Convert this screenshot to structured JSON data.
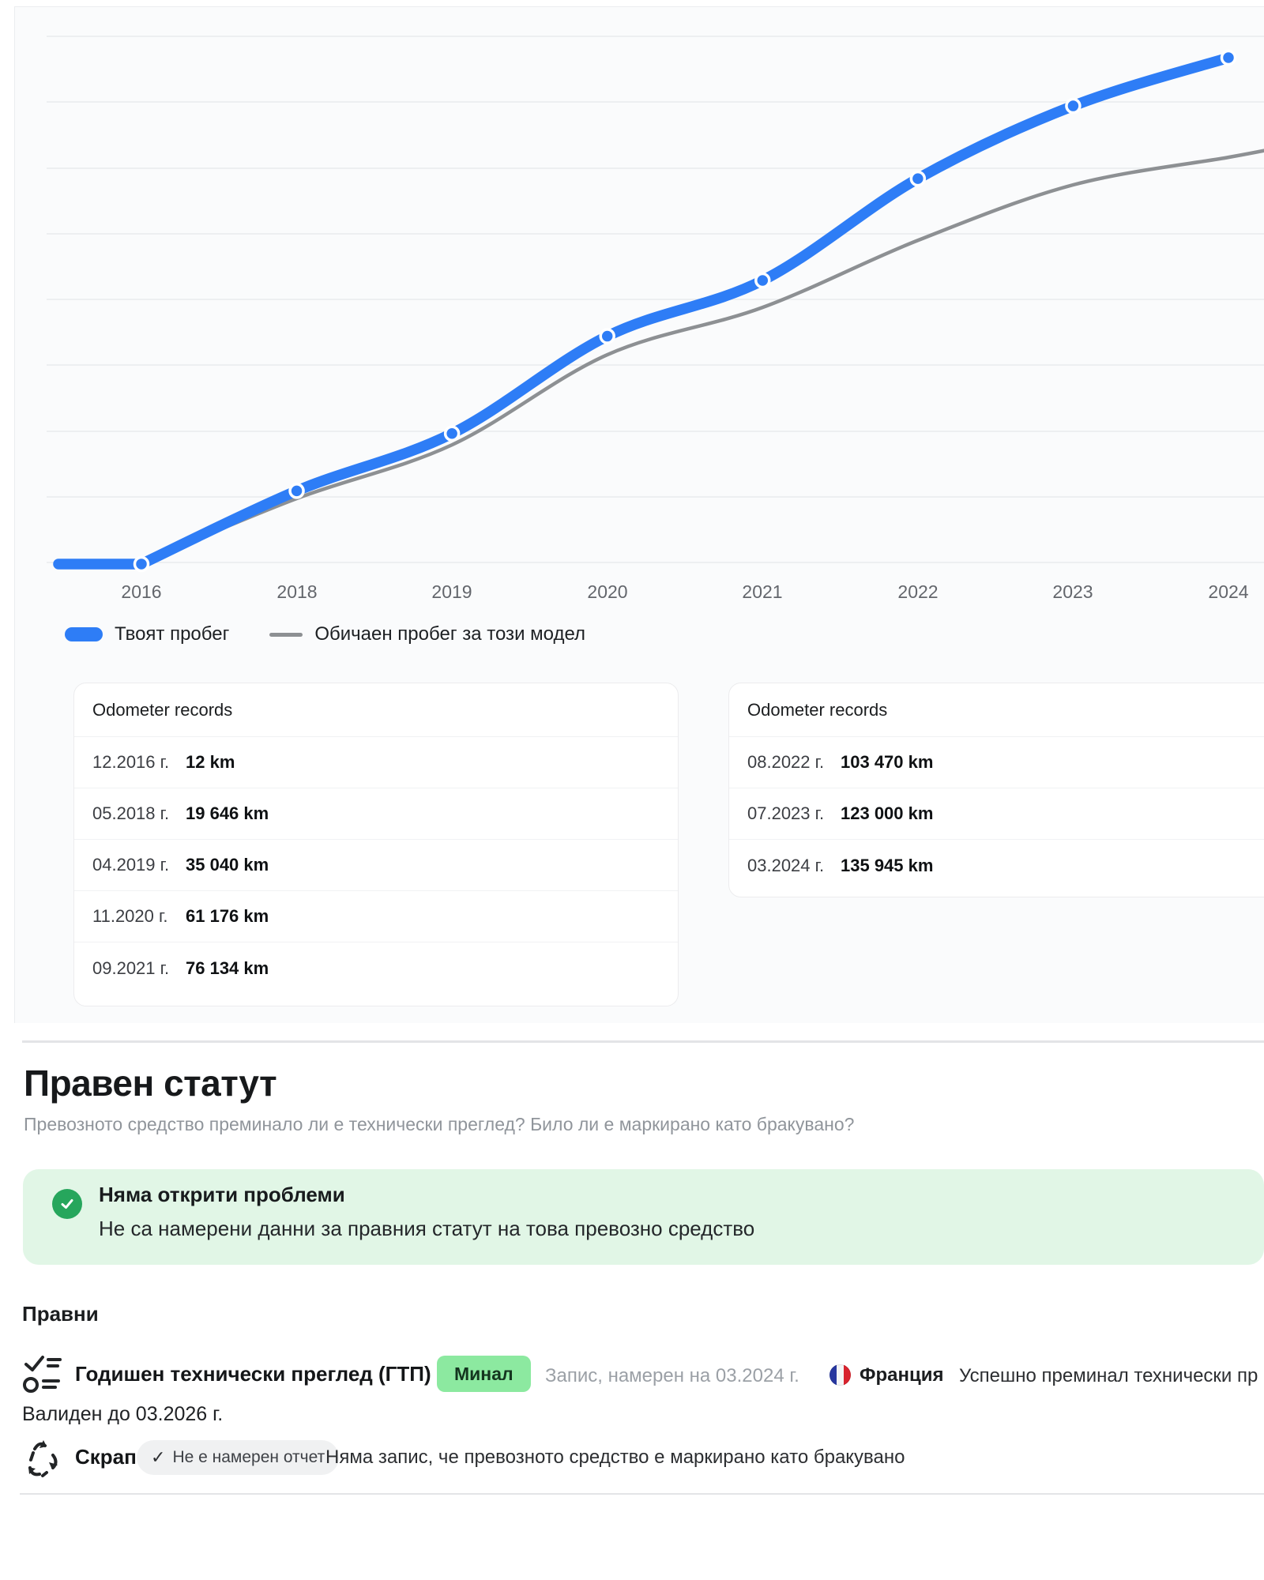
{
  "chart_data": {
    "type": "line",
    "title": "",
    "x": [
      "12.2016",
      "05.2018",
      "04.2019",
      "11.2020",
      "09.2021",
      "08.2022",
      "07.2023",
      "03.2024"
    ],
    "x_axis_ticks": [
      "2016",
      "2018",
      "2019",
      "2020",
      "2021",
      "2022",
      "2023",
      "2024"
    ],
    "ylabel": "km",
    "ylim": [
      0,
      150000
    ],
    "grid": "horizontal",
    "legend_position": "bottom-left",
    "series": [
      {
        "name": "Твоят пробег",
        "color": "#2e7df6",
        "values": [
          12,
          19646,
          35040,
          61176,
          76134,
          103470,
          123000,
          135945
        ]
      },
      {
        "name": "Обичаен пробег за този модел",
        "color": "#8d9093",
        "estimated": true,
        "values": [
          400,
          17600,
          32000,
          56200,
          68900,
          86900,
          101800,
          109200
        ],
        "edge_value": 111800
      }
    ]
  },
  "legend": {
    "series1": "Твоят пробег",
    "series2": "Обичаен пробег за този модел"
  },
  "odometer_cards": [
    {
      "title": "Odometer records",
      "rows": [
        {
          "date": "12.2016 г.",
          "value": "12 km"
        },
        {
          "date": "05.2018 г.",
          "value": "19 646 km"
        },
        {
          "date": "04.2019 г.",
          "value": "35 040 km"
        },
        {
          "date": "11.2020 г.",
          "value": "61 176 km"
        },
        {
          "date": "09.2021 г.",
          "value": "76 134 km"
        }
      ]
    },
    {
      "title": "Odometer records",
      "rows": [
        {
          "date": "08.2022 г.",
          "value": "103 470 km"
        },
        {
          "date": "07.2023 г.",
          "value": "123 000 km"
        },
        {
          "date": "03.2024 г.",
          "value": "135 945 km"
        }
      ]
    }
  ],
  "legal": {
    "heading": "Правен статут",
    "subtitle": "Превозното средство преминало ли е технически преглед? Било ли е маркирано като бракувано?",
    "alert": {
      "title": "Няма открити проблеми",
      "body": "Не са намерени данни за правния статут на това превозно средство"
    },
    "subheading": "Правни",
    "inspection": {
      "title": "Годишен технически преглед (ГТП)",
      "badge": "Минал",
      "record": "Запис, намерен на 03.2024 г.",
      "country": "Франция",
      "result": "Успешно преминал технически пр",
      "valid": "Валиден до 03.2026 г."
    },
    "scrap": {
      "title": "Скрап",
      "badge_check": "✓",
      "badge": "Не е намерен отчет",
      "text": "Няма запис, че превозното средство е маркирано като бракувано"
    }
  },
  "colors": {
    "accent_blue": "#2e7df6",
    "line_gray": "#8d9093",
    "grid": "#edeff1",
    "section_bg": "#fafbfc",
    "alert_bg": "#e1f6e6",
    "alert_icon_green": "#26a65c",
    "badge_green_bg": "#8ce9a0",
    "badge_gray_bg": "#f0f1f2",
    "flag_blue": "#27379f",
    "flag_red": "#d8232e"
  }
}
